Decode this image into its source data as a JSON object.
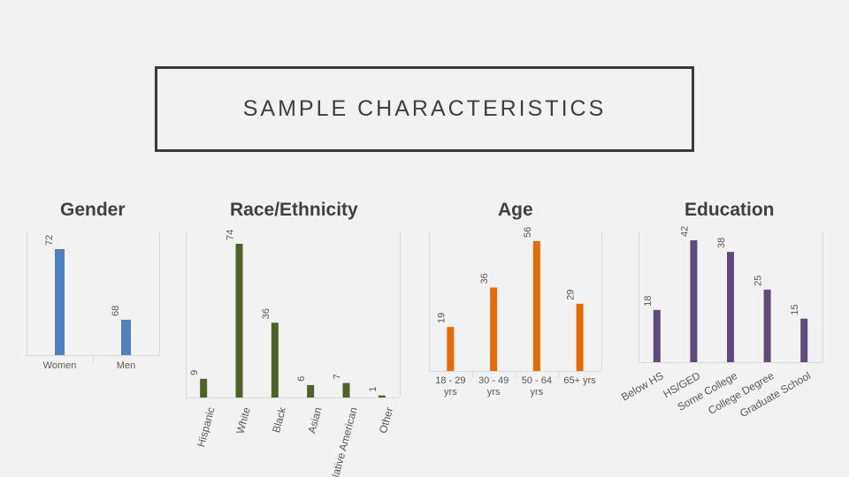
{
  "title": "SAMPLE CHARACTERISTICS",
  "colors": {
    "gender": "#4f81bd",
    "race": "#4f6228",
    "age": "#e36c09",
    "education": "#604a7b",
    "axis": "#d9d9d9",
    "text": "#595959"
  },
  "chart_data": [
    {
      "type": "bar",
      "title": "Gender",
      "categories": [
        "Women",
        "Men"
      ],
      "values": [
        72,
        68
      ],
      "ylim": [
        66,
        73
      ]
    },
    {
      "type": "bar",
      "title": "Race/Ethnicity",
      "categories": [
        "Hispanic",
        "White",
        "Black",
        "Asian",
        "Native American",
        "Other"
      ],
      "values": [
        9,
        74,
        36,
        6,
        7,
        1
      ],
      "ylim": [
        0,
        80
      ]
    },
    {
      "type": "bar",
      "title": "Age",
      "categories": [
        "18 - 29 yrs",
        "30 - 49 yrs",
        "50 - 64 yrs",
        "65+ yrs"
      ],
      "values": [
        19,
        36,
        56,
        29
      ],
      "ylim": [
        0,
        60
      ]
    },
    {
      "type": "bar",
      "title": "Education",
      "categories": [
        "Below HS",
        "HS/GED",
        "Some College",
        "College Degree",
        "Graduate School"
      ],
      "values": [
        18,
        42,
        38,
        25,
        15
      ],
      "ylim": [
        0,
        45
      ]
    }
  ]
}
